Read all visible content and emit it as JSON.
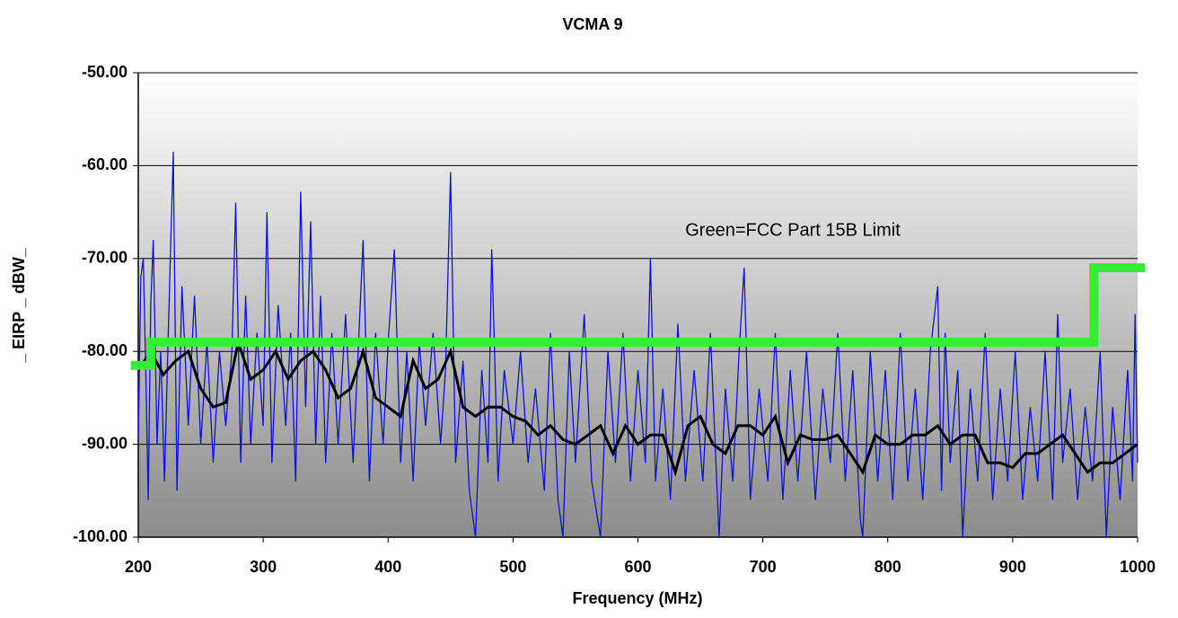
{
  "chart_data": {
    "type": "line",
    "title": "VCMA 9",
    "xlabel": "Frequency (MHz)",
    "ylabel": "_ EIRP _ dBW_",
    "annotation": "Green=FCC Part 15B Limit",
    "xlim": [
      200,
      1000
    ],
    "ylim": [
      -100,
      -50
    ],
    "xticks": [
      200,
      300,
      400,
      500,
      600,
      700,
      800,
      900,
      1000
    ],
    "yticks": [
      {
        "value": -100,
        "label": "-100.00"
      },
      {
        "value": -90,
        "label": "-90.00"
      },
      {
        "value": -80,
        "label": "-80.00"
      },
      {
        "value": -70,
        "label": "-70.00"
      },
      {
        "value": -60,
        "label": "-60.00"
      },
      {
        "value": -50,
        "label": "-50.00"
      }
    ],
    "grid": true,
    "series": [
      {
        "color": "#1010e0",
        "width": 1.3,
        "x": [
          200,
          202,
          204,
          206,
          208,
          210,
          212,
          215,
          218,
          221,
          224,
          228,
          231,
          235,
          240,
          245,
          250,
          255,
          260,
          265,
          270,
          275,
          278,
          282,
          286,
          290,
          295,
          300,
          303,
          307,
          312,
          318,
          322,
          326,
          330,
          334,
          338,
          342,
          346,
          350,
          355,
          360,
          366,
          372,
          376,
          380,
          385,
          390,
          396,
          400,
          405,
          410,
          415,
          420,
          425,
          430,
          436,
          442,
          446,
          450,
          454,
          460,
          465,
          470,
          475,
          480,
          483,
          488,
          493,
          500,
          506,
          512,
          518,
          525,
          530,
          536,
          540,
          545,
          550,
          557,
          563,
          570,
          576,
          582,
          588,
          594,
          600,
          606,
          610,
          614,
          620,
          626,
          632,
          638,
          645,
          652,
          658,
          665,
          670,
          676,
          681,
          685,
          690,
          697,
          704,
          710,
          716,
          722,
          728,
          735,
          742,
          748,
          754,
          760,
          766,
          772,
          778,
          780,
          786,
          792,
          798,
          804,
          810,
          816,
          822,
          828,
          834,
          840,
          843,
          846,
          850,
          856,
          860,
          866,
          872,
          878,
          884,
          890,
          896,
          902,
          908,
          914,
          920,
          926,
          932,
          936,
          940,
          946,
          952,
          958,
          964,
          970,
          975,
          980,
          986,
          992,
          996,
          998,
          1000
        ],
        "values": [
          -89.5,
          -72,
          -70,
          -82,
          -96,
          -75,
          -68,
          -90,
          -80,
          -94,
          -78,
          -58.5,
          -95,
          -73,
          -88,
          -74,
          -90,
          -79,
          -92,
          -80,
          -88,
          -80,
          -64,
          -92,
          -74,
          -90,
          -78,
          -88,
          -65,
          -92,
          -75,
          -88,
          -78,
          -94,
          -62.8,
          -86,
          -66,
          -90,
          -74,
          -92,
          -78,
          -90,
          -76,
          -92,
          -80,
          -68,
          -94,
          -78,
          -90,
          -79,
          -69,
          -92,
          -80,
          -94,
          -79,
          -88,
          -78,
          -90,
          -82,
          -60.7,
          -92,
          -81,
          -95,
          -100,
          -82,
          -92,
          -69,
          -94,
          -82,
          -90,
          -80,
          -92,
          -84,
          -95,
          -78,
          -96,
          -100,
          -80,
          -92,
          -76,
          -94,
          -100,
          -80,
          -92,
          -78,
          -94,
          -82,
          -92,
          -70,
          -94,
          -84,
          -96,
          -77,
          -94,
          -82,
          -94,
          -78,
          -100,
          -84,
          -94,
          -80,
          -71,
          -96,
          -84,
          -94,
          -78,
          -96,
          -82,
          -94,
          -80,
          -96,
          -84,
          -92,
          -78,
          -94,
          -82,
          -98,
          -100,
          -80,
          -94,
          -82,
          -96,
          -78,
          -94,
          -84,
          -96,
          -80,
          -73,
          -95,
          -78,
          -92,
          -82,
          -100,
          -84,
          -94,
          -78,
          -96,
          -84,
          -94,
          -80,
          -96,
          -86,
          -94,
          -80,
          -96,
          -76,
          -92,
          -84,
          -96,
          -86,
          -94,
          -80,
          -100,
          -86,
          -96,
          -82,
          -94,
          -76,
          -92
        ]
      },
      {
        "color": "#000000",
        "width": 3,
        "x": [
          200,
          210,
          220,
          230,
          240,
          250,
          260,
          270,
          280,
          290,
          300,
          310,
          320,
          330,
          340,
          350,
          360,
          370,
          380,
          390,
          400,
          410,
          420,
          430,
          440,
          450,
          460,
          470,
          480,
          490,
          500,
          510,
          520,
          530,
          540,
          550,
          560,
          570,
          580,
          590,
          600,
          610,
          620,
          630,
          640,
          650,
          660,
          670,
          680,
          690,
          700,
          710,
          720,
          730,
          740,
          750,
          760,
          770,
          780,
          790,
          800,
          810,
          820,
          830,
          840,
          850,
          860,
          870,
          880,
          890,
          900,
          910,
          920,
          930,
          940,
          950,
          960,
          970,
          980,
          990,
          1000
        ],
        "values": [
          -82,
          -80,
          -82.5,
          -81,
          -80,
          -84,
          -86,
          -85.5,
          -79,
          -83,
          -82,
          -80,
          -83,
          -81,
          -80,
          -82,
          -85,
          -84,
          -80,
          -85,
          -86,
          -87,
          -81,
          -84,
          -83,
          -80,
          -86,
          -87,
          -86,
          -86,
          -87,
          -87.5,
          -89,
          -88,
          -89.5,
          -90,
          -89,
          -88,
          -91,
          -88,
          -90,
          -89,
          -89,
          -93,
          -88,
          -87,
          -90,
          -91,
          -88,
          -88,
          -89,
          -87,
          -92,
          -89,
          -89.5,
          -89.5,
          -89,
          -91,
          -93,
          -89,
          -90,
          -90,
          -89,
          -89,
          -88,
          -90,
          -89,
          -89,
          -92,
          -92,
          -92.5,
          -91,
          -91,
          -90,
          -89,
          -91,
          -93,
          -92,
          -92,
          -91,
          -90
        ]
      },
      {
        "color": "#33ee33",
        "width": 10,
        "x": [
          194,
          210,
          210,
          965,
          965,
          1006
        ],
        "values": [
          -81.5,
          -81.5,
          -79,
          -79,
          -71,
          -71
        ]
      }
    ]
  }
}
